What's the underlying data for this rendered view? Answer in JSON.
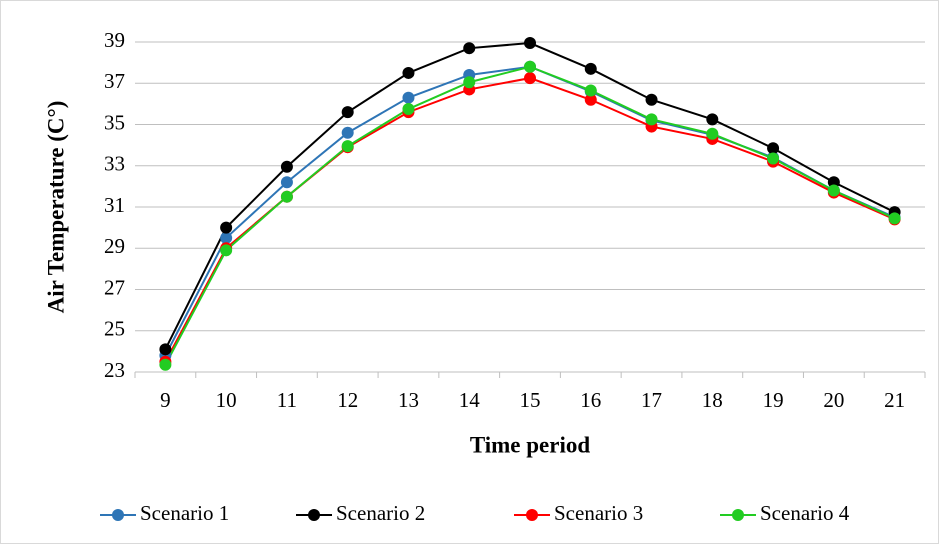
{
  "chart_data": {
    "type": "line",
    "x_label": "Time period",
    "y_label": "Air Temperature (C°)",
    "categories": [
      "9",
      "10",
      "11",
      "12",
      "13",
      "14",
      "15",
      "16",
      "17",
      "18",
      "19",
      "20",
      "21"
    ],
    "series": [
      {
        "name": "Scenario 1",
        "color": "#2e75b6",
        "values": [
          23.8,
          29.5,
          32.2,
          34.6,
          36.3,
          37.4,
          37.8,
          36.6,
          35.2,
          34.5,
          33.4,
          31.8,
          30.5
        ]
      },
      {
        "name": "Scenario 2",
        "color": "#000000",
        "values": [
          24.1,
          30.0,
          32.95,
          35.6,
          37.5,
          38.7,
          38.95,
          37.7,
          36.2,
          35.25,
          33.85,
          32.2,
          30.75
        ]
      },
      {
        "name": "Scenario 3",
        "color": "#ff0000",
        "values": [
          23.5,
          29.0,
          31.5,
          33.9,
          35.6,
          36.7,
          37.25,
          36.2,
          34.9,
          34.3,
          33.2,
          31.7,
          30.4
        ]
      },
      {
        "name": "Scenario 4",
        "color": "#22cc22",
        "values": [
          23.35,
          28.9,
          31.5,
          33.95,
          35.75,
          37.05,
          37.8,
          36.65,
          35.25,
          34.55,
          33.35,
          31.8,
          30.45
        ]
      }
    ],
    "ylim": [
      23,
      39
    ],
    "yticks": [
      23,
      25,
      27,
      29,
      31,
      33,
      35,
      37,
      39
    ],
    "grid": true,
    "legend": "bottom"
  }
}
